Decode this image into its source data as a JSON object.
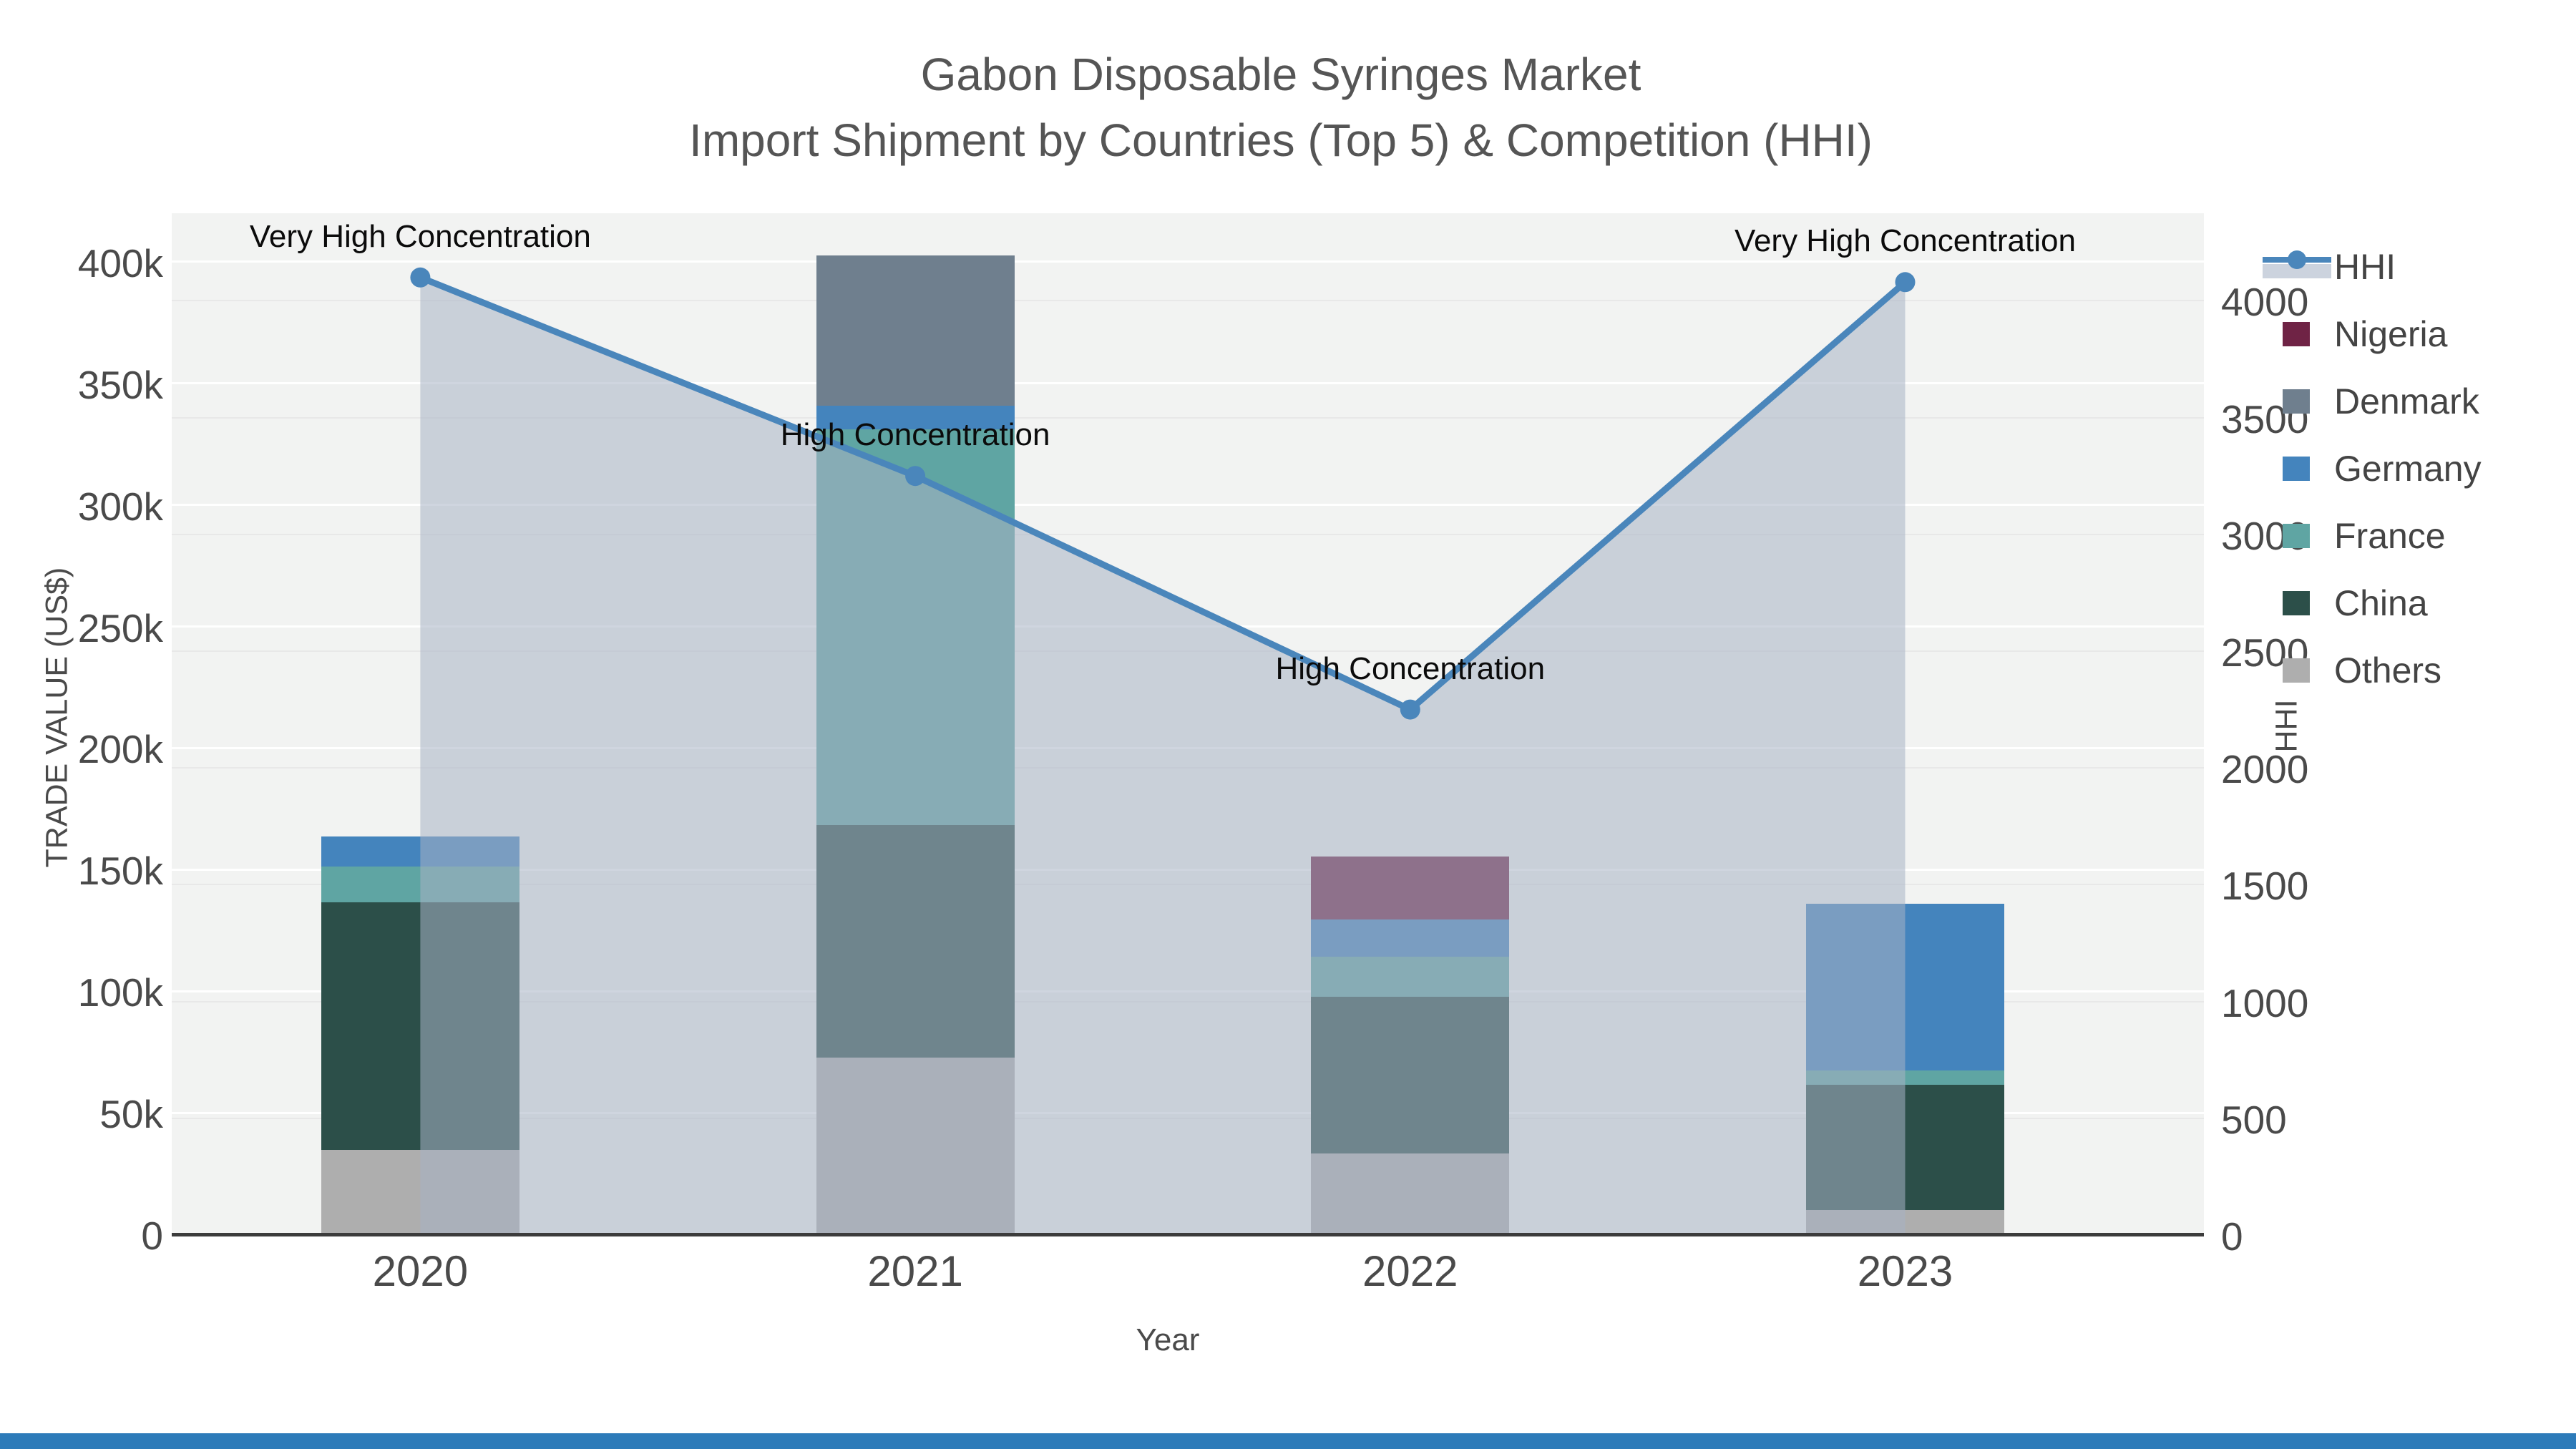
{
  "title": {
    "line1": "Gabon Disposable Syringes Market",
    "line2": "Import Shipment by Countries (Top 5) & Competition (HHI)"
  },
  "axes": {
    "left": {
      "title": "TRADE VALUE (US$)",
      "ticks": [
        {
          "label": "0",
          "value": 0
        },
        {
          "label": "50k",
          "value": 50
        },
        {
          "label": "100k",
          "value": 100
        },
        {
          "label": "150k",
          "value": 150
        },
        {
          "label": "200k",
          "value": 200
        },
        {
          "label": "250k",
          "value": 250
        },
        {
          "label": "300k",
          "value": 300
        },
        {
          "label": "350k",
          "value": 350
        },
        {
          "label": "400k",
          "value": 400
        }
      ]
    },
    "right": {
      "title": "HHI",
      "ticks": [
        {
          "label": "0",
          "value": 0
        },
        {
          "label": "500",
          "value": 500
        },
        {
          "label": "1000",
          "value": 1000
        },
        {
          "label": "1500",
          "value": 1500
        },
        {
          "label": "2000",
          "value": 2000
        },
        {
          "label": "2500",
          "value": 2500
        },
        {
          "label": "3000",
          "value": 3000
        },
        {
          "label": "3500",
          "value": 3500
        },
        {
          "label": "4000",
          "value": 4000
        }
      ]
    },
    "x": {
      "title": "Year",
      "categories": [
        "2020",
        "2021",
        "2022",
        "2023"
      ]
    }
  },
  "legend": {
    "items": [
      {
        "label": "HHI",
        "type": "line",
        "color": "#4a86bb"
      },
      {
        "label": "Nigeria",
        "type": "swatch",
        "color": "#6f2345"
      },
      {
        "label": "Denmark",
        "type": "swatch",
        "color": "#6f7f8e"
      },
      {
        "label": "Germany",
        "type": "swatch",
        "color": "#4484bd"
      },
      {
        "label": "France",
        "type": "swatch",
        "color": "#5fa5a3"
      },
      {
        "label": "China",
        "type": "swatch",
        "color": "#2c4f49"
      },
      {
        "label": "Others",
        "type": "swatch",
        "color": "#aeaeae"
      }
    ]
  },
  "chart_data": {
    "type": "bar+line",
    "title": "Gabon Disposable Syringes Market — Import Shipment by Countries (Top 5) & Competition (HHI)",
    "categories": [
      "2020",
      "2021",
      "2022",
      "2023"
    ],
    "bar_unit": "US$ thousands",
    "stack_order_bottom_to_top": [
      "Others",
      "China",
      "France",
      "Germany",
      "Denmark",
      "Nigeria"
    ],
    "series": [
      {
        "name": "Nigeria",
        "color": "#6f2345",
        "values": [
          0,
          0,
          25.9,
          0
        ]
      },
      {
        "name": "Denmark",
        "color": "#6f7f8e",
        "values": [
          0,
          61.8,
          0,
          0
        ]
      },
      {
        "name": "Germany",
        "color": "#4484bd",
        "values": [
          12.4,
          9.7,
          15.3,
          68.6
        ]
      },
      {
        "name": "France",
        "color": "#5fa5a3",
        "values": [
          14.7,
          162.7,
          16.5,
          5.9
        ]
      },
      {
        "name": "China",
        "color": "#2c4f49",
        "values": [
          101.8,
          95.6,
          64.4,
          51.5
        ]
      },
      {
        "name": "Others",
        "color": "#aeaeae",
        "values": [
          34.7,
          72.7,
          33.3,
          10.0
        ]
      }
    ],
    "bar_totals_k": [
      163.6,
      402.5,
      155.4,
      136.0
    ],
    "hhi": {
      "name": "HHI",
      "line_color": "#4a86bb",
      "fill_color": "rgba(167,178,197,0.55)",
      "values": [
        4100,
        3250,
        2250,
        4080
      ],
      "annotations": [
        "Very High Concentration",
        "High Concentration",
        "High Concentration",
        "Very High Concentration"
      ]
    },
    "ylim_left_k": [
      0,
      420
    ],
    "ylim_right": [
      0,
      4380
    ],
    "grid": true,
    "legend_position": "right",
    "plot_bg": "#f2f3f2"
  },
  "footer": {
    "strip_color": "#2d7bb9"
  }
}
